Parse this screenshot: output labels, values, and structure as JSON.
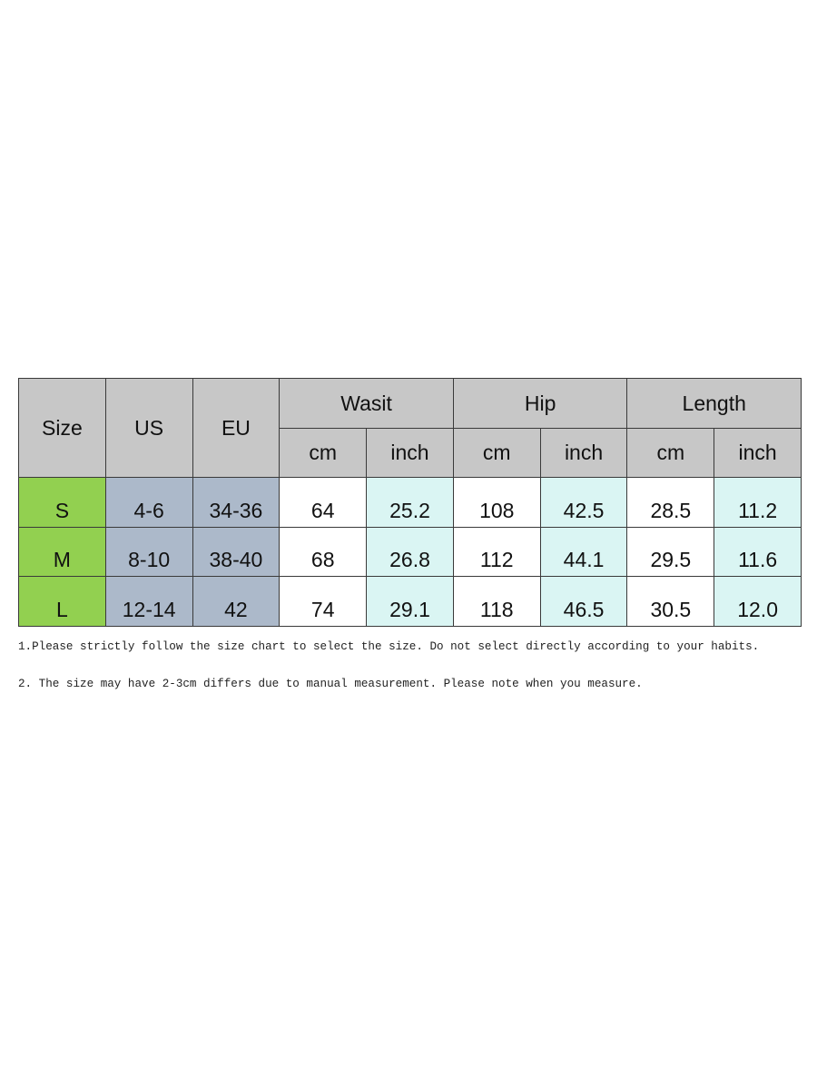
{
  "table": {
    "header": {
      "size": "Size",
      "us": "US",
      "eu": "EU",
      "groups": [
        "Wasit",
        "Hip",
        "Length"
      ],
      "units": [
        "cm",
        "inch",
        "cm",
        "inch",
        "cm",
        "inch"
      ]
    },
    "rows": [
      [
        "S",
        "4-6",
        "34-36",
        "64",
        "25.2",
        "108",
        "42.5",
        "28.5",
        "11.2"
      ],
      [
        "M",
        "8-10",
        "38-40",
        "68",
        "26.8",
        "112",
        "44.1",
        "29.5",
        "11.6"
      ],
      [
        "L",
        "12-14",
        "42",
        "74",
        "29.1",
        "118",
        "46.5",
        "30.5",
        "12.0"
      ]
    ]
  },
  "notes": [
    "1.Please strictly follow the size chart to select the size. Do not select directly according to your habits.",
    "2. The size may have 2-3cm differs due to manual measurement. Please note when you measure."
  ]
}
